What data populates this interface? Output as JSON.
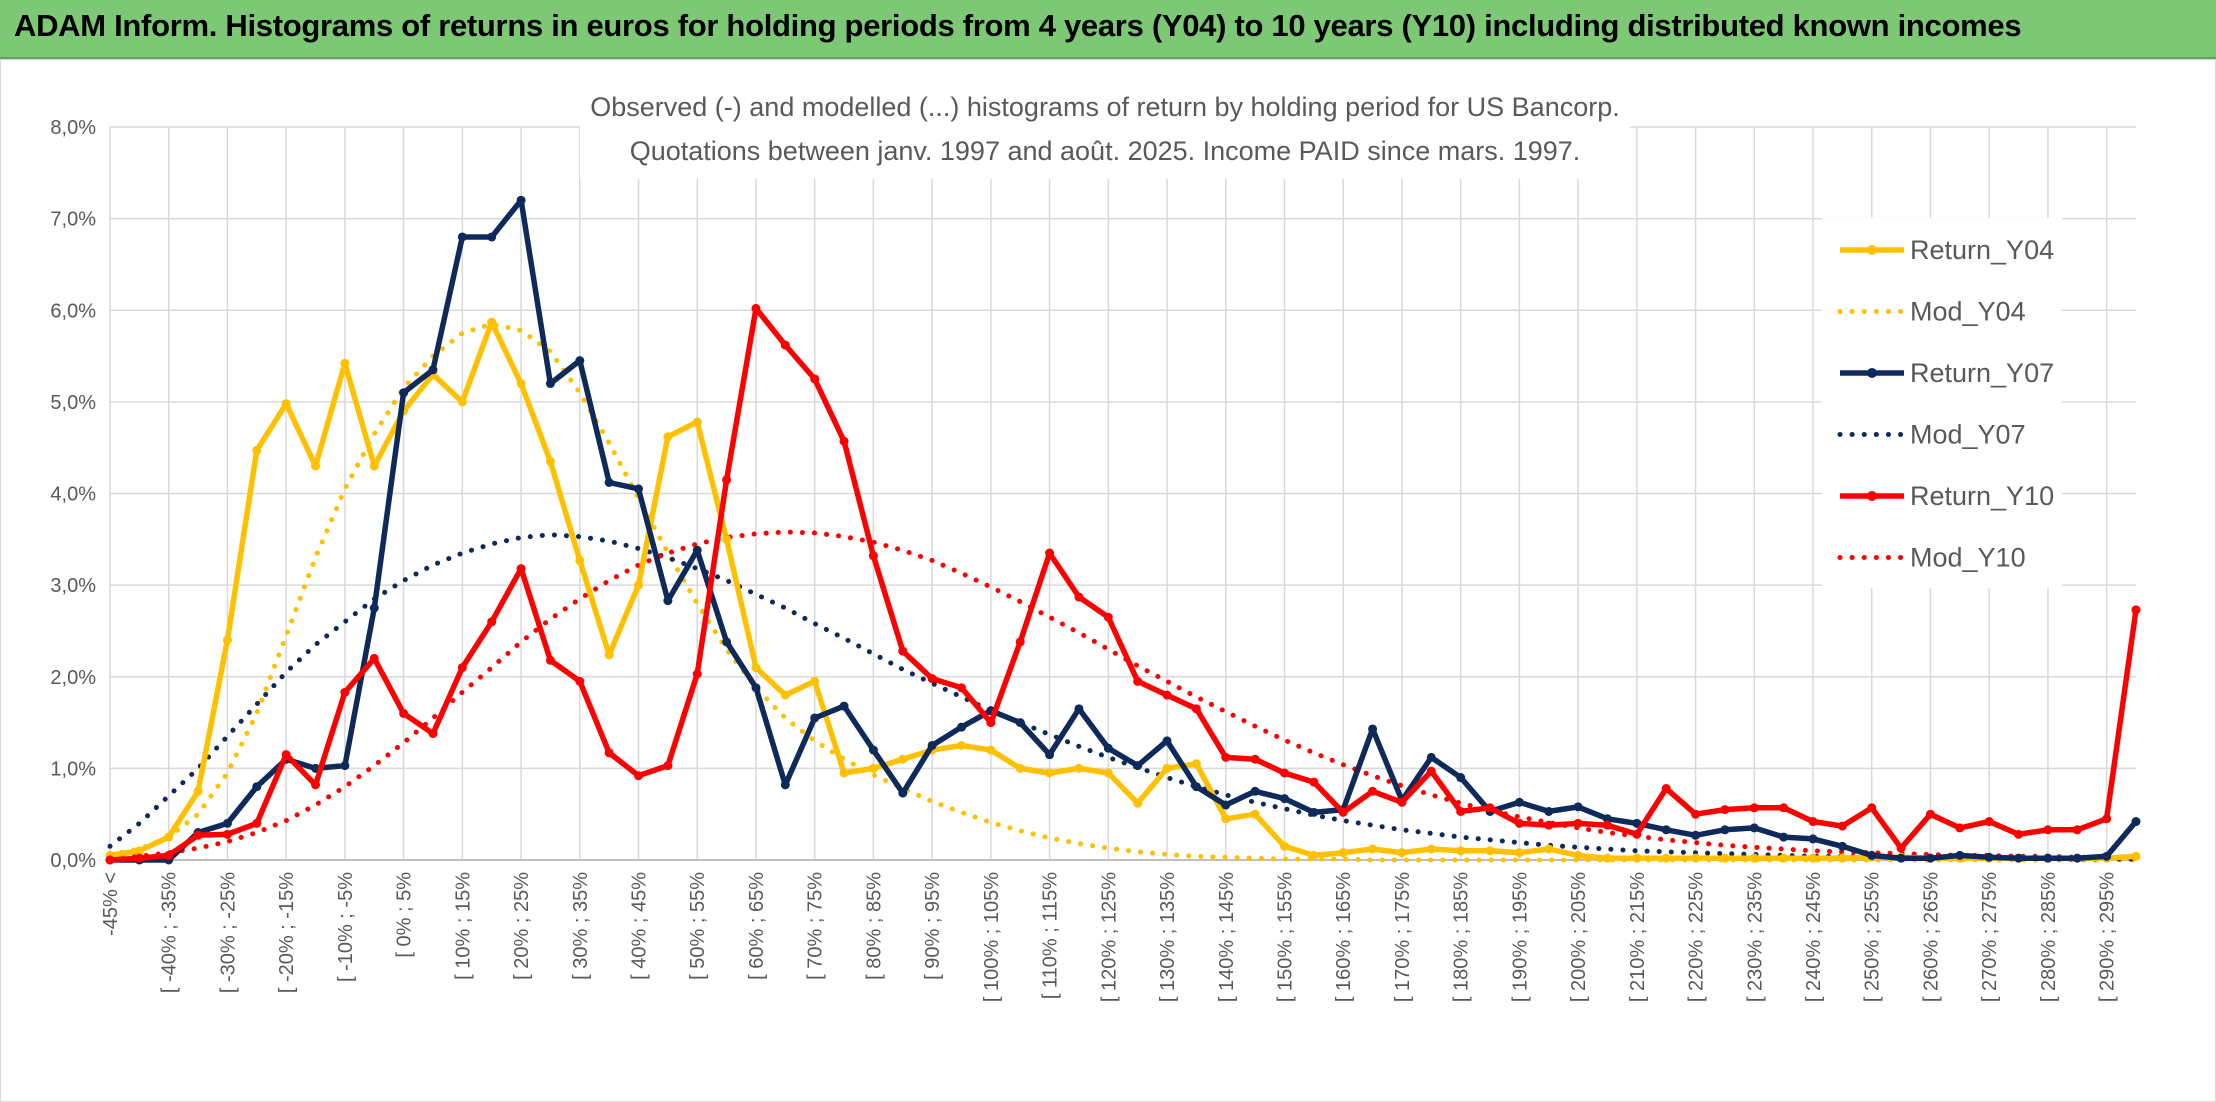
{
  "banner": {
    "title": "ADAM Inform. Histograms of returns in euros for holding periods from 4 years (Y04) to 10 years (Y10) including distributed known incomes"
  },
  "chart_data": {
    "type": "line",
    "title": "Observed (-) and modelled (...) histograms of return by holding period for US Bancorp.",
    "subtitle": "Quotations between janv. 1997 and août. 2025. Income PAID since mars. 1997.",
    "ylim": [
      0,
      8
    ],
    "y_ticks": [
      "0,0%",
      "1,0%",
      "2,0%",
      "3,0%",
      "4,0%",
      "5,0%",
      "6,0%",
      "7,0%",
      "8,0%"
    ],
    "grid": true,
    "legend_position": "right",
    "x_tick_labels": [
      "-45% <",
      "[ -40% ; -35%",
      "[ -30% ; -25%",
      "[ -20% ; -15%",
      "[ -10% ; -5%",
      "[ 0% ; 5%",
      "[ 10% ; 15%",
      "[ 20% ; 25%",
      "[ 30% ; 35%",
      "[ 40% ; 45%",
      "[ 50% ; 55%",
      "[ 60% ; 65%",
      "[ 70% ; 75%",
      "[ 80% ; 85%",
      "[ 90% ; 95%",
      "[ 100% ; 105%",
      "[ 110% ; 115%",
      "[ 120% ; 125%",
      "[ 130% ; 135%",
      "[ 140% ; 145%",
      "[ 150% ; 155%",
      "[ 160% ; 165%",
      "[ 170% ; 175%",
      "[ 180% ; 185%",
      "[ 190% ; 195%",
      "[ 200% ; 205%",
      "[ 210% ; 215%",
      "[ 220% ; 225%",
      "[ 230% ; 235%",
      "[ 240% ; 245%",
      "[ 250% ; 255%",
      "[ 260% ; 265%",
      "[ 270% ; 275%",
      "[ 280% ; 285%",
      "[ 290% ; 295%"
    ],
    "x_count": 70,
    "series": [
      {
        "name": "Return_Y04",
        "color": "#ffc000",
        "style": "solid",
        "values": [
          0.05,
          0.1,
          0.25,
          0.75,
          2.4,
          4.47,
          4.98,
          4.3,
          5.42,
          4.3,
          4.9,
          5.3,
          5.0,
          5.87,
          5.2,
          4.35,
          3.27,
          2.24,
          3.0,
          4.62,
          4.78,
          3.5,
          2.1,
          1.8,
          1.95,
          0.95,
          1.0,
          1.1,
          1.2,
          1.25,
          1.2,
          1.0,
          0.95,
          1.0,
          0.95,
          0.62,
          1.0,
          1.05,
          0.45,
          0.5,
          0.15,
          0.05,
          0.08,
          0.12,
          0.08,
          0.12,
          0.1,
          0.1,
          0.08,
          0.12,
          0.05,
          0.02,
          0.02,
          0.02,
          0.02,
          0.02,
          0.02,
          0.02,
          0.02,
          0.02,
          0.03,
          0.03,
          0.02,
          0.02,
          0.02,
          0.02,
          0.02,
          0.02,
          0.02,
          0.04
        ]
      },
      {
        "name": "Mod_Y04",
        "color": "#ffc000",
        "style": "dotted",
        "values": [
          0.06,
          0.12,
          0.25,
          0.5,
          0.95,
          1.6,
          2.45,
          3.3,
          4.05,
          4.65,
          5.15,
          5.5,
          5.75,
          5.85,
          5.78,
          5.55,
          5.1,
          4.55,
          3.95,
          3.35,
          2.8,
          2.3,
          1.88,
          1.55,
          1.3,
          1.1,
          0.93,
          0.78,
          0.64,
          0.52,
          0.41,
          0.32,
          0.24,
          0.18,
          0.13,
          0.09,
          0.06,
          0.04,
          0.03,
          0.02,
          0.01,
          0.01,
          0.01,
          0,
          0,
          0,
          0,
          0,
          0,
          0,
          0,
          0,
          0,
          0,
          0,
          0,
          0,
          0,
          0,
          0,
          0,
          0,
          0,
          0,
          0,
          0,
          0,
          0,
          0,
          0
        ]
      },
      {
        "name": "Return_Y07",
        "color": "#0e2a5a",
        "style": "solid",
        "values": [
          0.0,
          0.0,
          0.0,
          0.3,
          0.4,
          0.8,
          1.1,
          1.0,
          1.03,
          2.75,
          5.1,
          5.35,
          6.8,
          6.8,
          7.2,
          5.2,
          5.45,
          4.12,
          4.05,
          2.83,
          3.38,
          2.38,
          1.88,
          0.82,
          1.55,
          1.68,
          1.2,
          0.73,
          1.25,
          1.45,
          1.63,
          1.5,
          1.15,
          1.65,
          1.22,
          1.03,
          1.3,
          0.8,
          0.6,
          0.75,
          0.67,
          0.52,
          0.55,
          1.43,
          0.65,
          1.12,
          0.9,
          0.53,
          0.63,
          0.53,
          0.58,
          0.45,
          0.4,
          0.33,
          0.27,
          0.33,
          0.35,
          0.25,
          0.23,
          0.15,
          0.05,
          0.02,
          0.02,
          0.05,
          0.03,
          0.02,
          0.02,
          0.02,
          0.04,
          0.42
        ]
      },
      {
        "name": "Mod_Y07",
        "color": "#0e2a5a",
        "style": "dotted",
        "values": [
          0.15,
          0.4,
          0.7,
          1.0,
          1.35,
          1.7,
          2.05,
          2.35,
          2.6,
          2.85,
          3.05,
          3.22,
          3.35,
          3.45,
          3.52,
          3.55,
          3.53,
          3.48,
          3.4,
          3.3,
          3.18,
          3.05,
          2.9,
          2.75,
          2.58,
          2.42,
          2.25,
          2.08,
          1.93,
          1.78,
          1.63,
          1.5,
          1.37,
          1.24,
          1.12,
          1.01,
          0.9,
          0.8,
          0.71,
          0.63,
          0.56,
          0.49,
          0.43,
          0.38,
          0.33,
          0.29,
          0.25,
          0.22,
          0.19,
          0.16,
          0.14,
          0.12,
          0.1,
          0.09,
          0.08,
          0.07,
          0.06,
          0.05,
          0.04,
          0.04,
          0.03,
          0.03,
          0.02,
          0.02,
          0.02,
          0.02,
          0.01,
          0.01,
          0.01,
          0.01
        ]
      },
      {
        "name": "Return_Y10",
        "color": "#ff0000",
        "style": "solid",
        "values": [
          0.0,
          0.02,
          0.05,
          0.27,
          0.28,
          0.4,
          1.15,
          0.82,
          1.83,
          2.2,
          1.6,
          1.38,
          2.1,
          2.6,
          3.18,
          2.18,
          1.95,
          1.17,
          0.92,
          1.03,
          2.03,
          4.15,
          6.02,
          5.62,
          5.25,
          4.57,
          3.32,
          2.28,
          1.98,
          1.88,
          1.5,
          2.38,
          3.35,
          2.87,
          2.65,
          1.95,
          1.8,
          1.65,
          1.12,
          1.1,
          0.95,
          0.85,
          0.52,
          0.75,
          0.63,
          0.97,
          0.53,
          0.57,
          0.4,
          0.38,
          0.4,
          0.38,
          0.28,
          0.78,
          0.5,
          0.55,
          0.57,
          0.57,
          0.42,
          0.37,
          0.57,
          0.13,
          0.5,
          0.35,
          0.42,
          0.28,
          0.33,
          0.33,
          0.45,
          2.73
        ]
      },
      {
        "name": "Mod_Y10",
        "color": "#ff0000",
        "style": "dotted",
        "values": [
          0.02,
          0.04,
          0.08,
          0.13,
          0.2,
          0.3,
          0.43,
          0.6,
          0.8,
          1.03,
          1.28,
          1.55,
          1.83,
          2.1,
          2.38,
          2.63,
          2.85,
          3.05,
          3.22,
          3.35,
          3.45,
          3.52,
          3.56,
          3.58,
          3.57,
          3.53,
          3.47,
          3.38,
          3.27,
          3.13,
          2.98,
          2.82,
          2.65,
          2.48,
          2.3,
          2.12,
          1.95,
          1.78,
          1.62,
          1.46,
          1.31,
          1.17,
          1.04,
          0.92,
          0.81,
          0.71,
          0.62,
          0.54,
          0.47,
          0.41,
          0.35,
          0.3,
          0.26,
          0.22,
          0.19,
          0.16,
          0.14,
          0.12,
          0.1,
          0.09,
          0.08,
          0.07,
          0.06,
          0.05,
          0.05,
          0.04,
          0.04,
          0.03,
          0.03,
          0.03
        ]
      }
    ]
  }
}
